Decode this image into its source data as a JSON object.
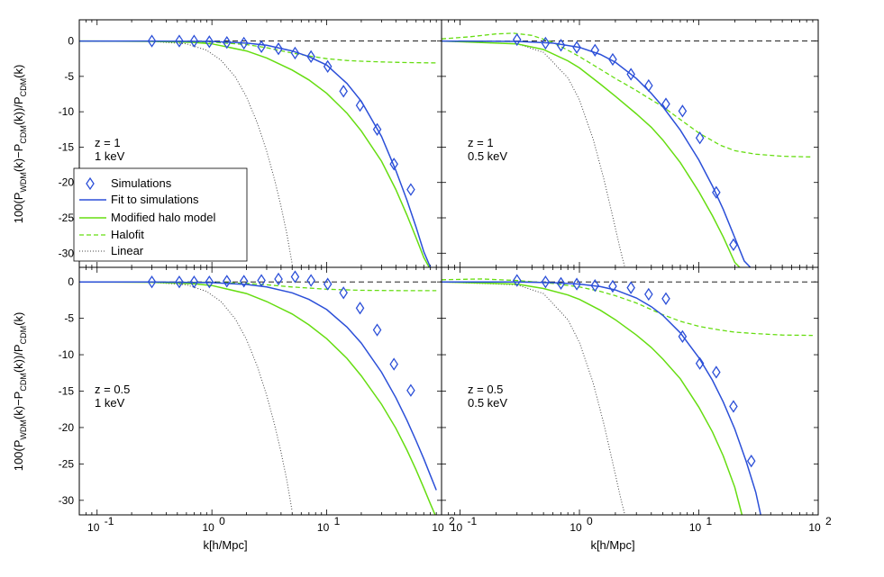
{
  "figure": {
    "xlabel": "k[h/Mpc]",
    "ylabel": "100(P_WDM(k)−P_CDM(k))/P_CDM(k)",
    "xticks": [
      {
        "value": 0.1,
        "base": "10",
        "exp": "-1"
      },
      {
        "value": 1,
        "base": "10",
        "exp": "0"
      },
      {
        "value": 10,
        "base": "10",
        "exp": "1"
      },
      {
        "value": 100,
        "base": "10",
        "exp": "2"
      }
    ],
    "yticks": [
      0,
      -5,
      -10,
      -15,
      -20,
      -25,
      -30
    ]
  },
  "legend": {
    "entries": [
      {
        "label": "Simulations",
        "style": "diamond"
      },
      {
        "label": "Fit to simulations",
        "style": "blue"
      },
      {
        "label": "Modified halo model",
        "style": "green"
      },
      {
        "label": "Halofit",
        "style": "dashgreen"
      },
      {
        "label": "Linear",
        "style": "dotted"
      }
    ]
  },
  "colors": {
    "blue": "#2b4fd8",
    "green": "#66dd11",
    "halofit": "#66dd11",
    "linear": "#444444",
    "marker": "#2b4fd8"
  },
  "chart_data": [
    {
      "type": "line",
      "panel": "top-left",
      "annotation": [
        "z = 1",
        "1 keV"
      ],
      "xscale": "log",
      "xlim": [
        0.07,
        100
      ],
      "ylim": [
        -32,
        3
      ],
      "simulations": {
        "x": [
          0.3,
          0.52,
          0.7,
          0.95,
          1.35,
          1.9,
          2.7,
          3.8,
          5.3,
          7.3,
          10.2,
          14,
          19.5,
          27.5,
          38.5,
          54
        ],
        "y": [
          0,
          0,
          0,
          -0.1,
          -0.2,
          -0.3,
          -0.8,
          -1.1,
          -1.7,
          -2.2,
          -3.6,
          -7.1,
          -9.1,
          -12.5,
          -17.4,
          -21
        ]
      },
      "fit": {
        "x": [
          0.07,
          0.3,
          1,
          2,
          3,
          5,
          7,
          10,
          15,
          20,
          30,
          40,
          50,
          60,
          70,
          80
        ],
        "y": [
          0,
          0,
          -0.05,
          -0.3,
          -0.6,
          -1.4,
          -2.2,
          -3.4,
          -6,
          -8.5,
          -13.5,
          -18.3,
          -22.5,
          -26.3,
          -29.8,
          -32
        ]
      },
      "modified_halo_model": {
        "x": [
          0.07,
          0.3,
          0.7,
          1,
          2,
          3,
          5,
          7,
          10,
          15,
          20,
          30,
          40,
          50,
          60,
          70,
          78
        ],
        "y": [
          0,
          -0.05,
          -0.2,
          -0.4,
          -1.4,
          -2.4,
          -4.1,
          -5.5,
          -7.4,
          -10.2,
          -12.7,
          -17,
          -21,
          -24.6,
          -27.8,
          -30.6,
          -32
        ]
      },
      "halofit": {
        "x": [
          0.07,
          0.5,
          1,
          2,
          3,
          5,
          7,
          10,
          15,
          20,
          30,
          50,
          90
        ],
        "y": [
          0,
          -0.05,
          -0.15,
          -0.5,
          -0.95,
          -1.7,
          -2.1,
          -2.5,
          -2.75,
          -2.85,
          -2.95,
          -3.05,
          -3.1
        ]
      },
      "linear": {
        "x": [
          0.07,
          0.3,
          0.6,
          0.9,
          1.2,
          1.6,
          2,
          2.5,
          3,
          3.5,
          4,
          4.5,
          5
        ],
        "y": [
          0,
          -0.05,
          -0.4,
          -1.3,
          -2.7,
          -5.1,
          -7.9,
          -11.7,
          -15.6,
          -19.5,
          -23.4,
          -27.3,
          -31.5
        ]
      }
    },
    {
      "type": "line",
      "panel": "top-right",
      "annotation": [
        "z = 1",
        "0.5 keV"
      ],
      "xscale": "log",
      "xlim": [
        0.07,
        100
      ],
      "ylim": [
        -32,
        3
      ],
      "simulations": {
        "x": [
          0.3,
          0.52,
          0.7,
          0.95,
          1.35,
          1.9,
          2.7,
          3.8,
          5.3,
          7.3,
          10.2,
          14,
          19.5
        ],
        "y": [
          0.2,
          -0.3,
          -0.6,
          -0.9,
          -1.3,
          -2.6,
          -4.7,
          -6.3,
          -8.9,
          -9.9,
          -13.7,
          -21.4,
          -28.8
        ]
      },
      "fit": {
        "x": [
          0.07,
          0.3,
          0.6,
          1,
          1.5,
          2,
          3,
          4,
          5,
          7,
          10,
          13,
          16,
          20,
          24,
          27
        ],
        "y": [
          0,
          -0.05,
          -0.3,
          -0.9,
          -1.9,
          -3,
          -5.3,
          -7.4,
          -9.3,
          -12.6,
          -16.8,
          -20.5,
          -23.8,
          -27.8,
          -31.1,
          -32
        ]
      },
      "modified_halo_model": {
        "x": [
          0.07,
          0.3,
          0.5,
          0.8,
          1,
          1.5,
          2,
          3,
          4,
          5,
          7,
          10,
          13,
          16,
          20,
          22
        ],
        "y": [
          0,
          -0.4,
          -1.2,
          -2.8,
          -3.8,
          -6.1,
          -7.8,
          -10.3,
          -12.2,
          -14,
          -17.2,
          -21.3,
          -24.7,
          -27.7,
          -31.3,
          -32
        ]
      },
      "halofit": {
        "x": [
          0.07,
          0.12,
          0.2,
          0.28,
          0.4,
          0.6,
          0.8,
          1,
          1.5,
          2,
          3,
          4,
          5,
          7,
          10,
          15,
          20,
          30,
          50,
          90
        ],
        "y": [
          0.3,
          0.6,
          1,
          1.1,
          0.8,
          -0.2,
          -1.3,
          -2.2,
          -4,
          -5.3,
          -7,
          -8.3,
          -9.3,
          -11.1,
          -13,
          -14.7,
          -15.5,
          -16,
          -16.3,
          -16.4
        ]
      },
      "linear": {
        "x": [
          0.07,
          0.3,
          0.5,
          0.8,
          1,
          1.3,
          1.6,
          1.9,
          2.2,
          2.4
        ],
        "y": [
          0,
          -0.4,
          -1.6,
          -5.2,
          -8.3,
          -13.8,
          -19.5,
          -24.8,
          -29.5,
          -32
        ]
      }
    },
    {
      "type": "line",
      "panel": "bottom-left",
      "annotation": [
        "z = 0.5",
        "1 keV"
      ],
      "xscale": "log",
      "xlim": [
        0.07,
        100
      ],
      "ylim": [
        -32,
        2
      ],
      "simulations": {
        "x": [
          0.3,
          0.52,
          0.7,
          0.95,
          1.35,
          1.9,
          2.7,
          3.8,
          5.3,
          7.3,
          10.2,
          14,
          19.5,
          27.5,
          38.5,
          54
        ],
        "y": [
          0,
          0,
          0,
          0,
          0.1,
          0.1,
          0.2,
          0.4,
          0.7,
          0.2,
          -0.3,
          -1.5,
          -3.6,
          -6.6,
          -11.3,
          -14.9
        ]
      },
      "fit": {
        "x": [
          0.07,
          0.3,
          1,
          2,
          3,
          5,
          7,
          10,
          15,
          20,
          30,
          40,
          50,
          60,
          70,
          80,
          90
        ],
        "y": [
          0,
          0,
          -0.1,
          -0.35,
          -0.7,
          -1.5,
          -2.4,
          -3.8,
          -6.2,
          -8.4,
          -12.4,
          -15.9,
          -19,
          -21.8,
          -24.3,
          -26.6,
          -28.6
        ]
      },
      "modified_halo_model": {
        "x": [
          0.07,
          0.3,
          0.7,
          1,
          2,
          3,
          5,
          7,
          10,
          15,
          20,
          30,
          40,
          50,
          60,
          70,
          80,
          88
        ],
        "y": [
          0,
          -0.05,
          -0.25,
          -0.5,
          -1.6,
          -2.7,
          -4.4,
          -5.9,
          -7.8,
          -10.5,
          -12.9,
          -16.8,
          -20.1,
          -23.1,
          -25.8,
          -28.3,
          -30.5,
          -32
        ]
      },
      "halofit": {
        "x": [
          0.07,
          1,
          2,
          3,
          5,
          10,
          20,
          50,
          90
        ],
        "y": [
          0,
          -0.05,
          -0.2,
          -0.4,
          -0.7,
          -1,
          -1.15,
          -1.2,
          -1.2
        ]
      },
      "linear": {
        "x": [
          0.07,
          0.3,
          0.6,
          0.9,
          1.2,
          1.6,
          2,
          2.5,
          3,
          3.5,
          4,
          4.5,
          5
        ],
        "y": [
          0,
          -0.05,
          -0.4,
          -1.3,
          -2.7,
          -5.1,
          -7.9,
          -11.7,
          -15.6,
          -19.5,
          -23.4,
          -27.3,
          -31.5
        ]
      }
    },
    {
      "type": "line",
      "panel": "bottom-right",
      "annotation": [
        "z = 0.5",
        "0.5 keV"
      ],
      "xscale": "log",
      "xlim": [
        0.07,
        100
      ],
      "ylim": [
        -32,
        2
      ],
      "simulations": {
        "x": [
          0.3,
          0.52,
          0.7,
          0.95,
          1.35,
          1.9,
          2.7,
          3.8,
          5.3,
          7.3,
          10.2,
          14,
          19.5,
          27.5
        ],
        "y": [
          0.2,
          0,
          -0.2,
          -0.3,
          -0.5,
          -0.6,
          -0.8,
          -1.7,
          -2.3,
          -7.5,
          -11.2,
          -12.4,
          -17.1,
          -24.6
        ]
      },
      "fit": {
        "x": [
          0.07,
          0.3,
          0.6,
          1,
          1.5,
          2,
          3,
          4,
          5,
          7,
          10,
          13,
          16,
          20,
          25,
          30,
          33
        ],
        "y": [
          0,
          0,
          -0.1,
          -0.3,
          -0.65,
          -1.1,
          -2.2,
          -3.4,
          -4.6,
          -7,
          -10.4,
          -13.5,
          -16.5,
          -20.2,
          -24.7,
          -28.9,
          -32
        ]
      },
      "modified_halo_model": {
        "x": [
          0.07,
          0.3,
          0.5,
          0.8,
          1,
          1.5,
          2,
          3,
          4,
          5,
          7,
          10,
          13,
          16,
          20,
          23
        ],
        "y": [
          0,
          -0.3,
          -0.9,
          -1.8,
          -2.4,
          -3.9,
          -5.2,
          -7.3,
          -9,
          -10.6,
          -13.3,
          -17.2,
          -20.6,
          -23.9,
          -28.2,
          -32
        ]
      },
      "halofit": {
        "x": [
          0.07,
          0.15,
          0.3,
          0.6,
          1,
          1.5,
          2,
          3,
          4,
          5,
          7,
          10,
          15,
          20,
          30,
          50,
          90
        ],
        "y": [
          0.3,
          0.4,
          0.2,
          -0.2,
          -0.7,
          -1.3,
          -1.9,
          -2.9,
          -3.8,
          -4.5,
          -5.4,
          -6.1,
          -6.6,
          -6.9,
          -7.1,
          -7.3,
          -7.35
        ]
      },
      "linear": {
        "x": [
          0.07,
          0.3,
          0.5,
          0.8,
          1,
          1.3,
          1.6,
          1.9,
          2.2,
          2.4
        ],
        "y": [
          0,
          -0.4,
          -1.6,
          -5.2,
          -8.3,
          -13.8,
          -19.5,
          -24.8,
          -29.5,
          -32
        ]
      }
    }
  ]
}
